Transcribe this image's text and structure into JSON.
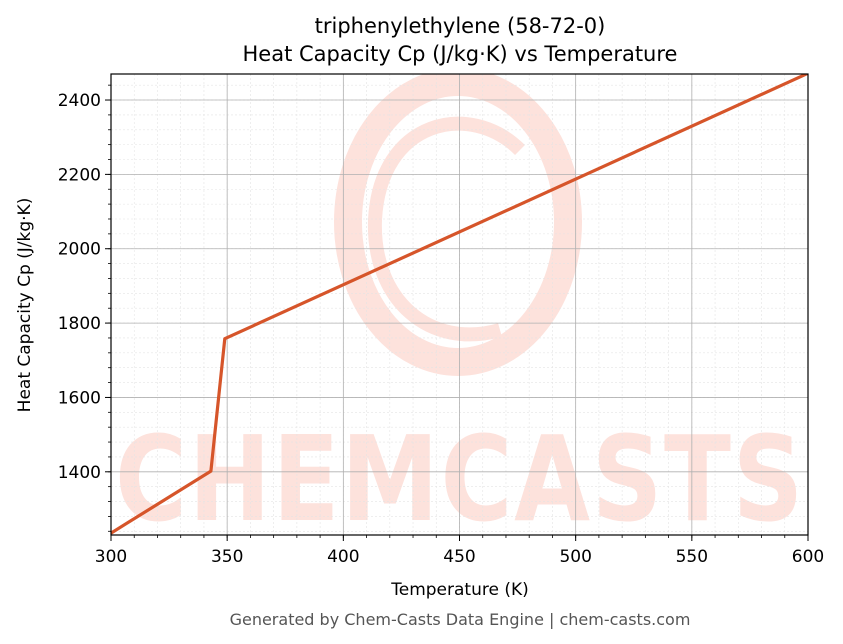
{
  "chart_data": {
    "type": "line",
    "title": "triphenylethylene (58-72-0)",
    "subtitle": "Heat Capacity Cp (J/kg·K) vs Temperature",
    "xlabel": "Temperature (K)",
    "ylabel": "Heat Capacity Cp (J/kg·K)",
    "xlim": [
      300,
      600
    ],
    "ylim": [
      1230,
      2470
    ],
    "xticks": [
      "300",
      "350",
      "400",
      "450",
      "500",
      "550",
      "600"
    ],
    "yticks": [
      "1400",
      "1600",
      "1800",
      "2000",
      "2200",
      "2400"
    ],
    "grid": true,
    "series": [
      {
        "color": "#d6552a",
        "x": [
          300,
          343,
          349,
          600
        ],
        "y": [
          1235,
          1402,
          1758,
          2472
        ]
      }
    ]
  },
  "watermark": {
    "text": "CHEMCASTS",
    "color": "#fde2dc"
  },
  "footer": "Generated by Chem-Casts Data Engine | chem-casts.com"
}
